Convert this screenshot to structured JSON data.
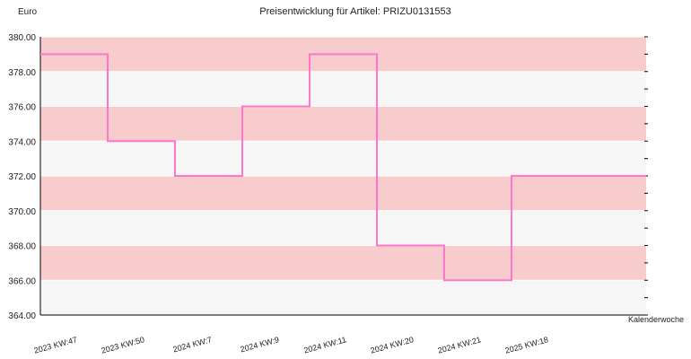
{
  "chart_data": {
    "type": "line",
    "step": true,
    "title": "Preisentwicklung für Artikel: PRIZU0131553",
    "ylabel": "Euro",
    "xlabel": "Kalenderwoche",
    "ylim": [
      364.0,
      380.0
    ],
    "ytick_step": 2.0,
    "yticks": [
      "364.00",
      "366.00",
      "368.00",
      "370.00",
      "372.00",
      "374.00",
      "376.00",
      "378.00",
      "380.00"
    ],
    "categories": [
      "2023 KW:47",
      "2023 KW:50",
      "2024 KW:7",
      "2024 KW:9",
      "2024 KW:11",
      "2024 KW:20",
      "2024 KW:21",
      "2025 KW:18",
      ""
    ],
    "series": [
      {
        "values": [
          379,
          374,
          372,
          376,
          379,
          368,
          366,
          372,
          372
        ]
      }
    ],
    "grid": true,
    "legend": "none",
    "colors": {
      "line": "#ff77cc",
      "band_dark": "#f8cccc",
      "band_light": "#f6f6f6",
      "grid": "#ffffff",
      "axis": "#000000"
    }
  }
}
